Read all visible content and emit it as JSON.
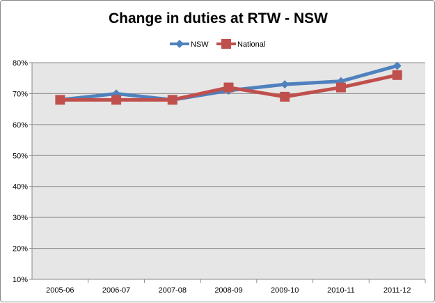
{
  "chart_data": {
    "type": "line",
    "title": "Change in duties at RTW - NSW",
    "categories": [
      "2005-06",
      "2006-07",
      "2007-08",
      "2008-09",
      "2009-10",
      "2010-11",
      "2011-12"
    ],
    "series": [
      {
        "name": "NSW",
        "values": [
          68,
          70,
          68,
          71,
          73,
          74,
          79
        ],
        "color": "#4F81BD",
        "marker": "diamond"
      },
      {
        "name": "National",
        "values": [
          68,
          68,
          68,
          72,
          69,
          72,
          76
        ],
        "color": "#C0504D",
        "marker": "square"
      }
    ],
    "ylim": [
      10,
      80
    ],
    "yticks": [
      "10%",
      "20%",
      "30%",
      "40%",
      "50%",
      "60%",
      "70%",
      "80%"
    ],
    "grid": true,
    "legend": "top",
    "plot_background": "#E6E6E6"
  }
}
